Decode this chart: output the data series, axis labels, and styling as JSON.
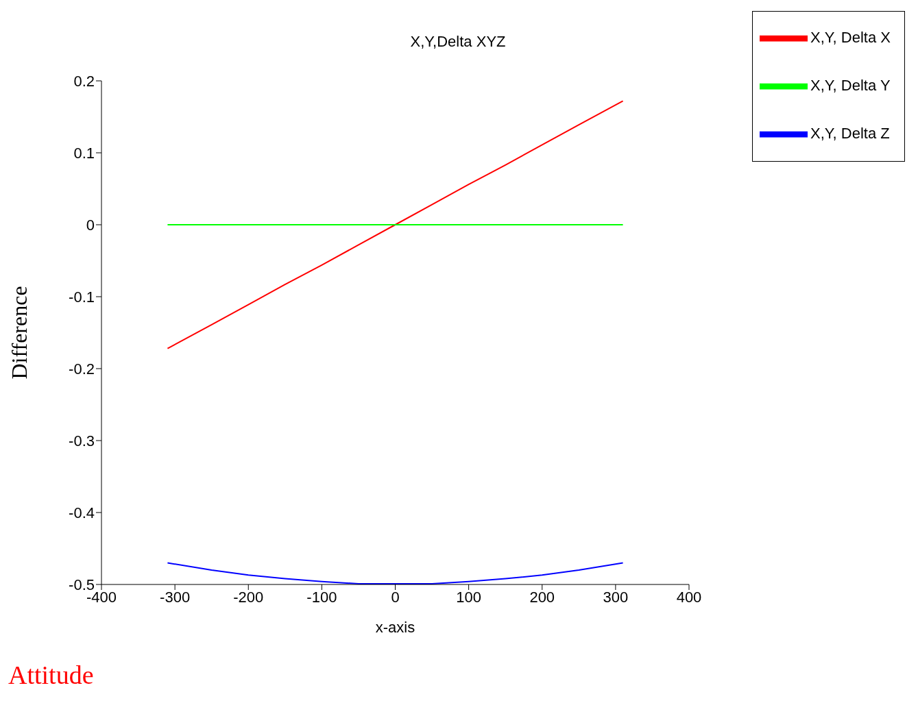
{
  "chart_data": {
    "type": "line",
    "title": "X,Y,Delta XYZ",
    "xlabel": "x-axis",
    "ylabel": "Difference",
    "xlim": [
      -400,
      400
    ],
    "xticks": [
      -400,
      -300,
      -200,
      -100,
      0,
      100,
      200,
      300,
      400
    ],
    "ylim": [
      -0.5,
      0.2
    ],
    "yticks": [
      -0.5,
      -0.4,
      -0.3,
      -0.2,
      -0.1,
      0,
      0.1,
      0.2
    ],
    "grid": false,
    "legend": "top right",
    "marker": "none",
    "line_style": "solid",
    "annotations": [
      "Attitude"
    ],
    "series": [
      {
        "name": "X,Y, Delta X",
        "color": "#ff0000",
        "x": [
          -310,
          -250,
          -200,
          -150,
          -100,
          -50,
          0,
          50,
          100,
          150,
          200,
          250,
          310
        ],
        "values": [
          -0.172,
          -0.139,
          -0.111,
          -0.083,
          -0.056,
          -0.028,
          0,
          0.028,
          0.056,
          0.083,
          0.111,
          0.139,
          0.172
        ]
      },
      {
        "name": "X,Y, Delta Y",
        "color": "#00ff00",
        "x": [
          -310,
          310
        ],
        "values": [
          0,
          0
        ]
      },
      {
        "name": "X,Y, Delta Z",
        "color": "#0000ff",
        "x": [
          -310,
          -250,
          -200,
          -150,
          -100,
          -50,
          0,
          50,
          100,
          150,
          200,
          250,
          310
        ],
        "values": [
          -0.47,
          -0.48,
          -0.487,
          -0.492,
          -0.496,
          -0.499,
          -0.499,
          -0.499,
          -0.496,
          -0.492,
          -0.487,
          -0.48,
          -0.47
        ]
      }
    ]
  }
}
